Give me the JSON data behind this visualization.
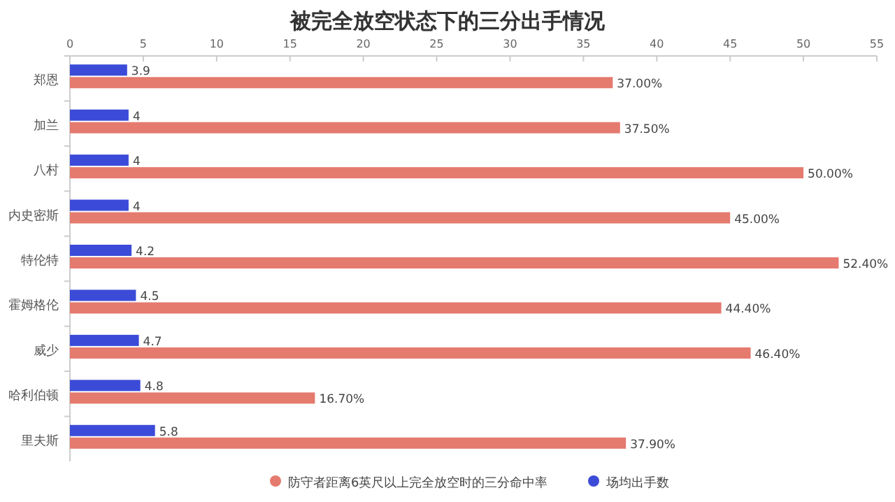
{
  "chart_data": {
    "type": "bar",
    "orientation": "horizontal",
    "title": "被完全放空状态下的三分出手情况",
    "categories": [
      "郑恩",
      "加兰",
      "八村",
      "内史密斯",
      "特伦特",
      "霍姆格伦",
      "威少",
      "哈利伯顿",
      "里夫斯"
    ],
    "series": [
      {
        "name": "防守者距离6英尺以上完全放空时的三分命中率",
        "color": "#e57a6e",
        "values": [
          37.0,
          37.5,
          50.0,
          45.0,
          52.4,
          44.4,
          46.4,
          16.7,
          37.9
        ],
        "value_labels": [
          "37.00%",
          "37.50%",
          "50.00%",
          "45.00%",
          "52.40%",
          "44.40%",
          "46.40%",
          "16.70%",
          "37.90%"
        ]
      },
      {
        "name": "场均出手数",
        "color": "#3b4bd8",
        "values": [
          3.9,
          4,
          4,
          4,
          4.2,
          4.5,
          4.7,
          4.8,
          5.8
        ],
        "value_labels": [
          "3.9",
          "4",
          "4",
          "4",
          "4.2",
          "4.5",
          "4.7",
          "4.8",
          "5.8"
        ]
      }
    ],
    "xlim": [
      0,
      55
    ],
    "xticks": [
      0,
      5,
      10,
      15,
      20,
      25,
      30,
      35,
      40,
      45,
      50,
      55
    ],
    "grid": false,
    "legend": "bottom",
    "marker": "circle"
  }
}
